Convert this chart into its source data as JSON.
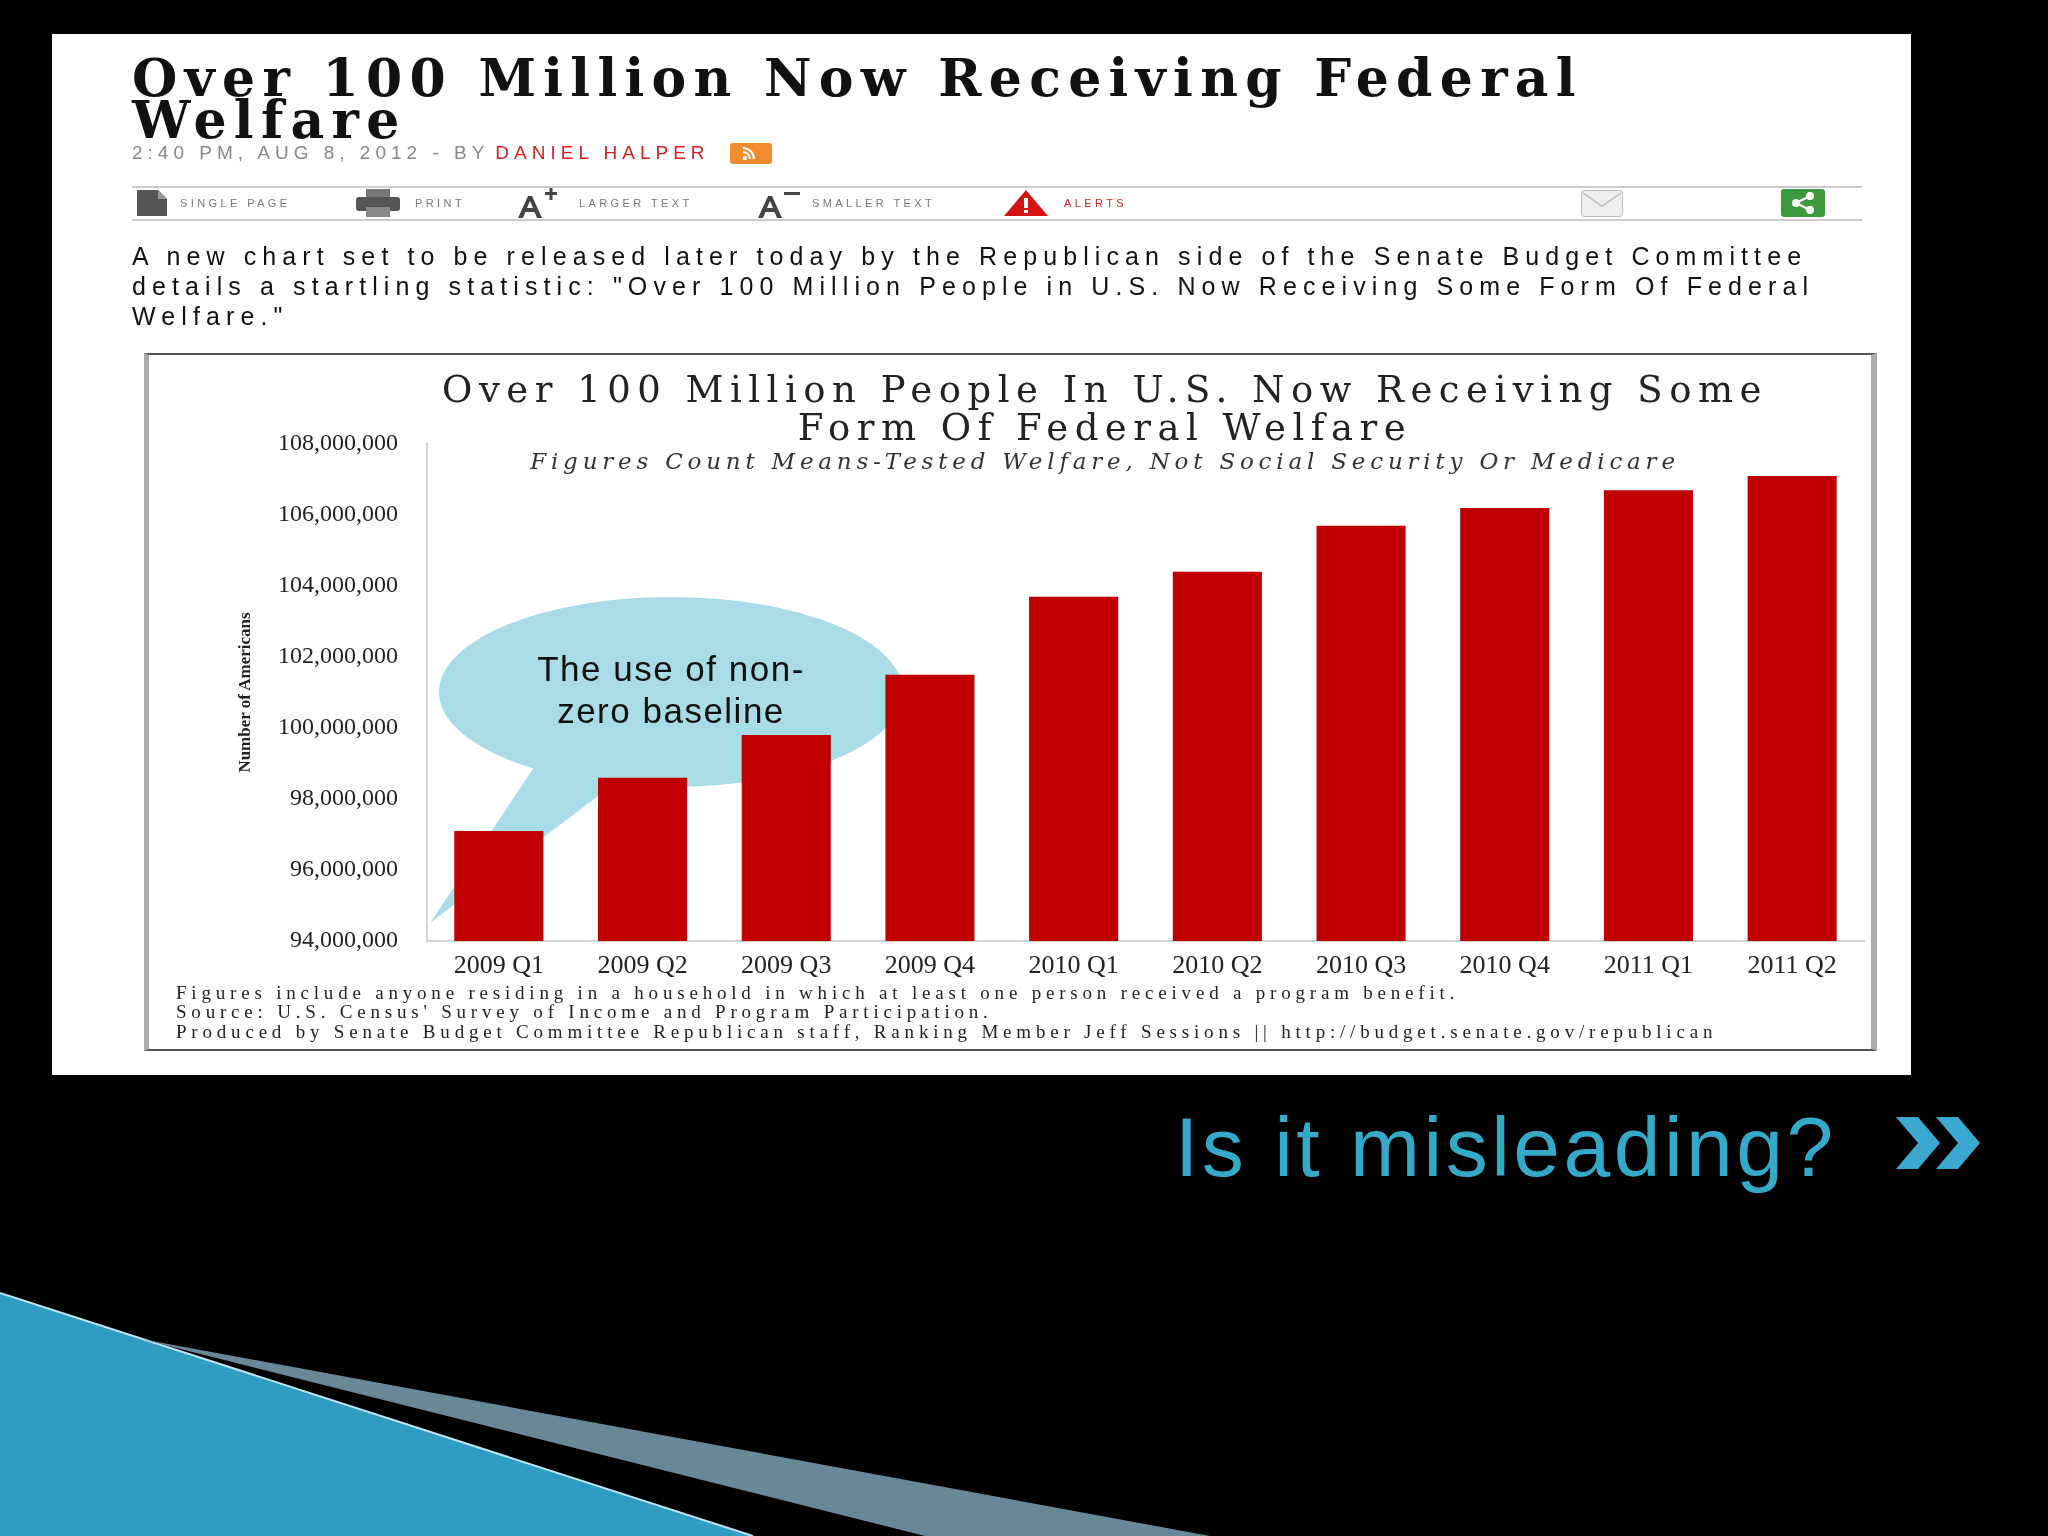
{
  "chart_data": {
    "type": "bar",
    "title": "Over 100 Million People In U.S. Now Receiving Some Form Of Federal Welfare",
    "subtitle": "Figures Count Means-Tested Welfare, Not Social Security Or Medicare",
    "ylabel": "Number of Americans",
    "categories": [
      "2009 Q1",
      "2009 Q2",
      "2009 Q3",
      "2009 Q4",
      "2010 Q1",
      "2010 Q2",
      "2010 Q3",
      "2010 Q4",
      "2011 Q1",
      "2011 Q2"
    ],
    "values": [
      97100000,
      98600000,
      99800000,
      101500000,
      103700000,
      104400000,
      105700000,
      106200000,
      106700000,
      107100000
    ],
    "color": "#c00000",
    "ylim": [
      94000000,
      108000000
    ],
    "yticks": [
      {
        "value": 94000000,
        "label": "94,000,000"
      },
      {
        "value": 96000000,
        "label": "96,000,000"
      },
      {
        "value": 98000000,
        "label": "98,000,000"
      },
      {
        "value": 100000000,
        "label": "100,000,000"
      },
      {
        "value": 102000000,
        "label": "102,000,000"
      },
      {
        "value": 104000000,
        "label": "104,000,000"
      },
      {
        "value": 106000000,
        "label": "106,000,000"
      },
      {
        "value": 108000000,
        "label": "108,000,000"
      }
    ],
    "annotations": [
      "Over 100 Million Now Receiving Federal Welfare",
      "2:40 PM, AUG 8, 2012 - BY",
      "DANIEL HALPER",
      "SINGLE PAGE",
      "PRINT",
      "LARGER TEXT",
      "SMALLER TEXT",
      "ALERTS",
      "A new chart set to be released later today by the Republican side of the Senate Budget Committee details a startling statistic: \"Over 100 Million People in U.S. Now Receiving Some Form Of Federal Welfare.\"",
      "Figures include anyone residing in a household in which at least one person received a program benefit.",
      "Source: U.S. Census' Survey of Income and Program Participation.",
      "Produced by Senate Budget Committee Republican staff, Ranking Member Jeff Sessions || http://budget.senate.gov/republican",
      "The use of non-zero baseline",
      "Is it misleading?"
    ]
  }
}
